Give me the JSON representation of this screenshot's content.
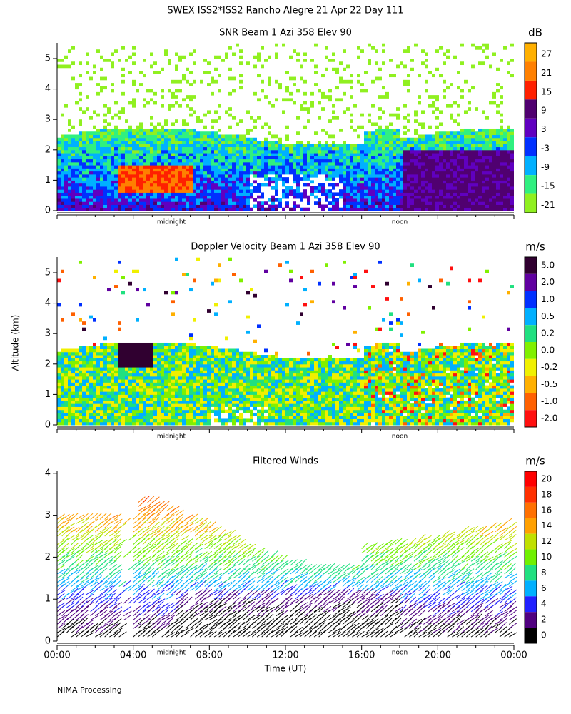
{
  "title": "SWEX ISS2*ISS2 Rancho Alegre  21 Apr 22 Day 111",
  "ylabel": "Altitude (km)",
  "footer": "NIMA Processing",
  "xaxis": {
    "ticks": [
      "00:00",
      "04:00",
      "08:00",
      "12:00",
      "16:00",
      "20:00",
      "00:00"
    ],
    "label": "Time (UT)",
    "midnight": "midnight",
    "noon": "noon"
  },
  "panels": [
    {
      "title": "SNR Beam 1 Azi 358 Elev 90",
      "unit": "dB",
      "yticks": [
        "0",
        "1",
        "2",
        "3",
        "4",
        "5"
      ],
      "colorbar": {
        "labels": [
          "27",
          "21",
          "15",
          "9",
          "3",
          "-3",
          "-9",
          "-15",
          "-21"
        ],
        "colors": [
          "#ffb000",
          "#ff8000",
          "#ff2000",
          "#500070",
          "#6000c0",
          "#0030ff",
          "#00b0ff",
          "#30f080",
          "#90f020"
        ]
      }
    },
    {
      "title": "Doppler Velocity Beam 1 Azi 358 Elev 90",
      "unit": "m/s",
      "yticks": [
        "0",
        "1",
        "2",
        "3",
        "4",
        "5"
      ],
      "colorbar": {
        "labels": [
          "5.0",
          "2.0",
          "1.0",
          "0.5",
          "0.2",
          "0.0",
          "-0.2",
          "-0.5",
          "-1.0",
          "-2.0"
        ],
        "colors": [
          "#300030",
          "#6000a0",
          "#0030ff",
          "#00b0ff",
          "#20e080",
          "#80f000",
          "#f0f000",
          "#ffb000",
          "#ff6000",
          "#ff1010"
        ]
      }
    },
    {
      "title": "Filtered Winds",
      "unit": "m/s",
      "yticks": [
        "0",
        "1",
        "2",
        "3",
        "4"
      ],
      "colorbar": {
        "labels": [
          "20",
          "18",
          "16",
          "14",
          "12",
          "10",
          "8",
          "6",
          "4",
          "2",
          "0"
        ],
        "colors": [
          "#ff0000",
          "#ff3000",
          "#ff7000",
          "#ffa000",
          "#c0e000",
          "#70f000",
          "#20e080",
          "#00b0ff",
          "#2020ff",
          "#500080",
          "#000000"
        ]
      }
    }
  ]
}
